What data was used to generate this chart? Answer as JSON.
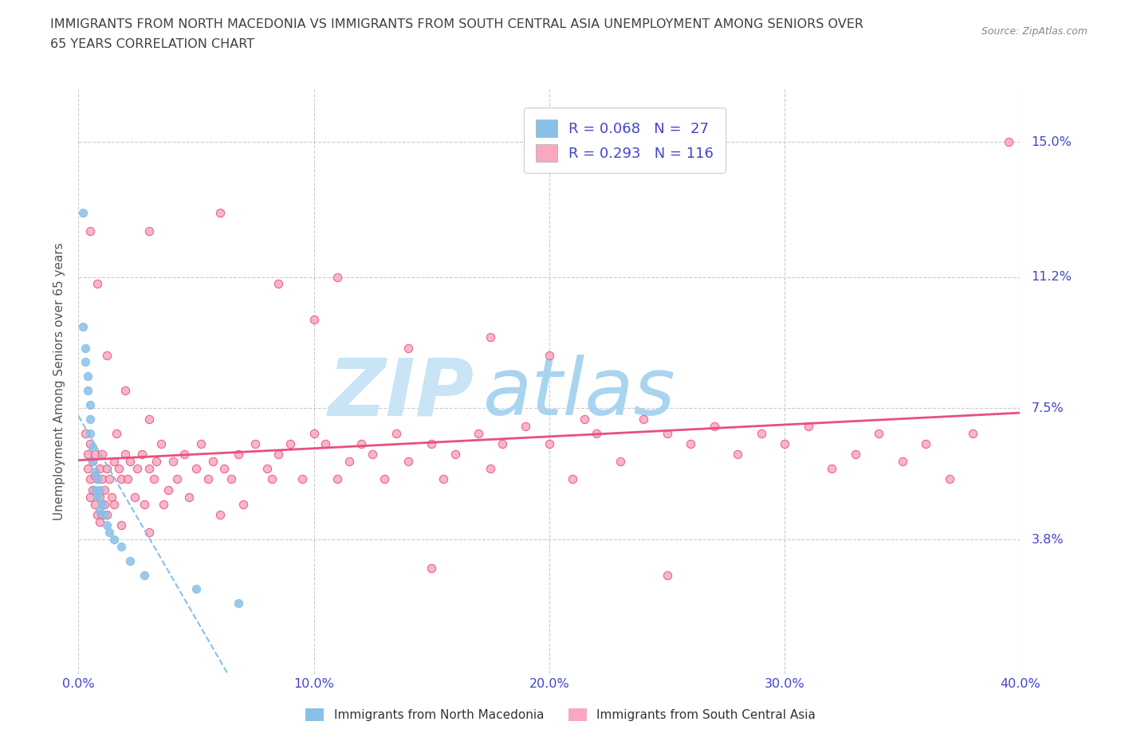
{
  "title_line1": "IMMIGRANTS FROM NORTH MACEDONIA VS IMMIGRANTS FROM SOUTH CENTRAL ASIA UNEMPLOYMENT AMONG SENIORS OVER",
  "title_line2": "65 YEARS CORRELATION CHART",
  "source": "Source: ZipAtlas.com",
  "ylabel": "Unemployment Among Seniors over 65 years",
  "xlim": [
    0.0,
    0.4
  ],
  "ylim": [
    0.0,
    0.165
  ],
  "yticks": [
    0.038,
    0.075,
    0.112,
    0.15
  ],
  "ytick_labels": [
    "3.8%",
    "7.5%",
    "11.2%",
    "15.0%"
  ],
  "xticks": [
    0.0,
    0.1,
    0.2,
    0.3,
    0.4
  ],
  "xtick_labels": [
    "0.0%",
    "10.0%",
    "20.0%",
    "30.0%",
    "40.0%"
  ],
  "color_blue": "#88c0e8",
  "color_pink": "#f9a8c0",
  "color_trend_blue": "#88c0e8",
  "color_trend_pink": "#e8507a",
  "color_grid": "#cccccc",
  "color_title": "#404040",
  "color_axis_val": "#4444cc",
  "watermark_color": "#c8e4f5",
  "blue_x": [
    0.002,
    0.002,
    0.003,
    0.003,
    0.004,
    0.004,
    0.005,
    0.005,
    0.005,
    0.006,
    0.006,
    0.007,
    0.007,
    0.008,
    0.008,
    0.009,
    0.009,
    0.01,
    0.011,
    0.012,
    0.013,
    0.015,
    0.018,
    0.022,
    0.028,
    0.05,
    0.068
  ],
  "blue_y": [
    0.13,
    0.098,
    0.092,
    0.088,
    0.084,
    0.08,
    0.076,
    0.072,
    0.068,
    0.064,
    0.06,
    0.057,
    0.052,
    0.055,
    0.05,
    0.052,
    0.046,
    0.048,
    0.045,
    0.042,
    0.04,
    0.038,
    0.036,
    0.032,
    0.028,
    0.024,
    0.02
  ],
  "pink_x": [
    0.003,
    0.004,
    0.004,
    0.005,
    0.005,
    0.005,
    0.006,
    0.006,
    0.007,
    0.007,
    0.007,
    0.008,
    0.008,
    0.009,
    0.009,
    0.009,
    0.01,
    0.01,
    0.01,
    0.011,
    0.011,
    0.012,
    0.012,
    0.013,
    0.014,
    0.015,
    0.015,
    0.016,
    0.017,
    0.018,
    0.018,
    0.02,
    0.021,
    0.022,
    0.024,
    0.025,
    0.027,
    0.028,
    0.03,
    0.03,
    0.032,
    0.033,
    0.035,
    0.036,
    0.038,
    0.04,
    0.042,
    0.045,
    0.047,
    0.05,
    0.052,
    0.055,
    0.057,
    0.06,
    0.062,
    0.065,
    0.068,
    0.07,
    0.075,
    0.08,
    0.082,
    0.085,
    0.09,
    0.095,
    0.1,
    0.105,
    0.11,
    0.115,
    0.12,
    0.125,
    0.13,
    0.135,
    0.14,
    0.15,
    0.155,
    0.16,
    0.17,
    0.175,
    0.18,
    0.19,
    0.2,
    0.21,
    0.215,
    0.22,
    0.23,
    0.24,
    0.25,
    0.26,
    0.27,
    0.28,
    0.29,
    0.3,
    0.31,
    0.32,
    0.33,
    0.34,
    0.35,
    0.36,
    0.37,
    0.38,
    0.03,
    0.06,
    0.085,
    0.11,
    0.14,
    0.175,
    0.395,
    0.03,
    0.2,
    0.1,
    0.15,
    0.25,
    0.005,
    0.008,
    0.012,
    0.02
  ],
  "pink_y": [
    0.068,
    0.062,
    0.058,
    0.065,
    0.055,
    0.05,
    0.06,
    0.052,
    0.056,
    0.048,
    0.062,
    0.055,
    0.045,
    0.058,
    0.05,
    0.043,
    0.062,
    0.055,
    0.045,
    0.048,
    0.052,
    0.058,
    0.045,
    0.055,
    0.05,
    0.06,
    0.048,
    0.068,
    0.058,
    0.055,
    0.042,
    0.062,
    0.055,
    0.06,
    0.05,
    0.058,
    0.062,
    0.048,
    0.072,
    0.058,
    0.055,
    0.06,
    0.065,
    0.048,
    0.052,
    0.06,
    0.055,
    0.062,
    0.05,
    0.058,
    0.065,
    0.055,
    0.06,
    0.045,
    0.058,
    0.055,
    0.062,
    0.048,
    0.065,
    0.058,
    0.055,
    0.062,
    0.065,
    0.055,
    0.068,
    0.065,
    0.055,
    0.06,
    0.065,
    0.062,
    0.055,
    0.068,
    0.06,
    0.065,
    0.055,
    0.062,
    0.068,
    0.058,
    0.065,
    0.07,
    0.065,
    0.055,
    0.072,
    0.068,
    0.06,
    0.072,
    0.068,
    0.065,
    0.07,
    0.062,
    0.068,
    0.065,
    0.07,
    0.058,
    0.062,
    0.068,
    0.06,
    0.065,
    0.055,
    0.068,
    0.125,
    0.13,
    0.11,
    0.112,
    0.092,
    0.095,
    0.15,
    0.04,
    0.09,
    0.1,
    0.03,
    0.028,
    0.125,
    0.11,
    0.09,
    0.08
  ]
}
